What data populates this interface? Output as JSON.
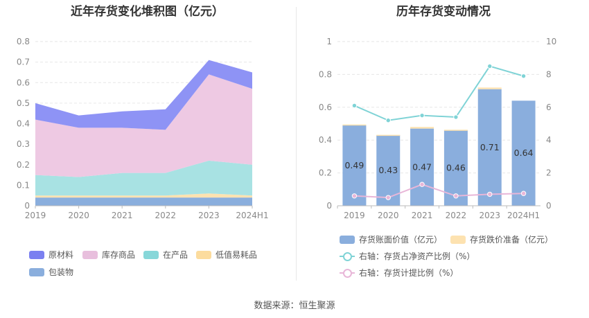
{
  "titles": {
    "left": "近年存货变化堆积图（亿元）",
    "right": "历年存货变动情况"
  },
  "source": "数据来源：恒生聚源",
  "chart_data": [
    {
      "type": "area",
      "stacked": true,
      "title": "近年存货变化堆积图（亿元）",
      "categories": [
        "2019",
        "2020",
        "2021",
        "2022",
        "2023",
        "2024H1"
      ],
      "ylim": [
        0,
        0.8
      ],
      "yticks": [
        "0",
        "0.1",
        "0.2",
        "0.3",
        "0.4",
        "0.5",
        "0.6",
        "0.7",
        "0.8"
      ],
      "series": [
        {
          "name": "包装物",
          "color": "#8aaedd",
          "values": [
            0.04,
            0.04,
            0.04,
            0.04,
            0.04,
            0.04
          ]
        },
        {
          "name": "低值易耗品",
          "color": "#fde2b0",
          "values": [
            0.01,
            0.01,
            0.01,
            0.01,
            0.02,
            0.01
          ]
        },
        {
          "name": "在产品",
          "color": "#a8e2e3",
          "values": [
            0.1,
            0.09,
            0.11,
            0.11,
            0.16,
            0.15
          ]
        },
        {
          "name": "库存商品",
          "color": "#eec9e3",
          "values": [
            0.27,
            0.24,
            0.22,
            0.21,
            0.42,
            0.37
          ]
        },
        {
          "name": "原材料",
          "color": "#8e93f5",
          "values": [
            0.08,
            0.06,
            0.08,
            0.1,
            0.07,
            0.08
          ]
        }
      ],
      "legend": [
        {
          "name": "原材料",
          "color": "#7b80f0"
        },
        {
          "name": "库存商品",
          "color": "#e8bfdd"
        },
        {
          "name": "在产品",
          "color": "#87d7d9"
        },
        {
          "name": "低值易耗品",
          "color": "#fcdc9e"
        },
        {
          "name": "包装物",
          "color": "#8aaedd"
        }
      ],
      "legend_position": "bottom",
      "grid": true
    },
    {
      "type": "bar",
      "title": "历年存货变动情况",
      "categories": [
        "2019",
        "2020",
        "2021",
        "2022",
        "2023",
        "2024H1"
      ],
      "ylim": [
        0,
        1
      ],
      "yticks": [
        "0",
        "0.2",
        "0.4",
        "0.6",
        "0.8",
        "1"
      ],
      "y2lim": [
        0,
        10
      ],
      "y2ticks": [
        "0",
        "2",
        "4",
        "6",
        "8",
        "10"
      ],
      "series": [
        {
          "name": "存货账面价值（亿元）",
          "kind": "bar",
          "color": "#8aaedd",
          "values": [
            0.49,
            0.43,
            0.47,
            0.46,
            0.71,
            0.64
          ],
          "labels": [
            "0.49",
            "0.43",
            "0.47",
            "0.46",
            "0.71",
            "0.64"
          ]
        },
        {
          "name": "存货跌价准备（亿元）",
          "kind": "bar-stack",
          "color": "#fde2b0",
          "values": [
            0.005,
            0.002,
            0.01,
            0.003,
            0.01,
            0.0
          ]
        },
        {
          "name": "右轴：存货占净资产比例（%）",
          "kind": "line",
          "axis": "right",
          "color": "#7fd3d6",
          "values": [
            6.1,
            5.2,
            5.5,
            5.4,
            8.5,
            7.9
          ]
        },
        {
          "name": "右轴：存货计提比例（%）",
          "kind": "line",
          "axis": "right",
          "color": "#e8b6d8",
          "values": [
            0.6,
            0.5,
            1.3,
            0.6,
            0.7,
            0.75
          ]
        }
      ],
      "legend_position": "bottom",
      "grid": true
    }
  ]
}
